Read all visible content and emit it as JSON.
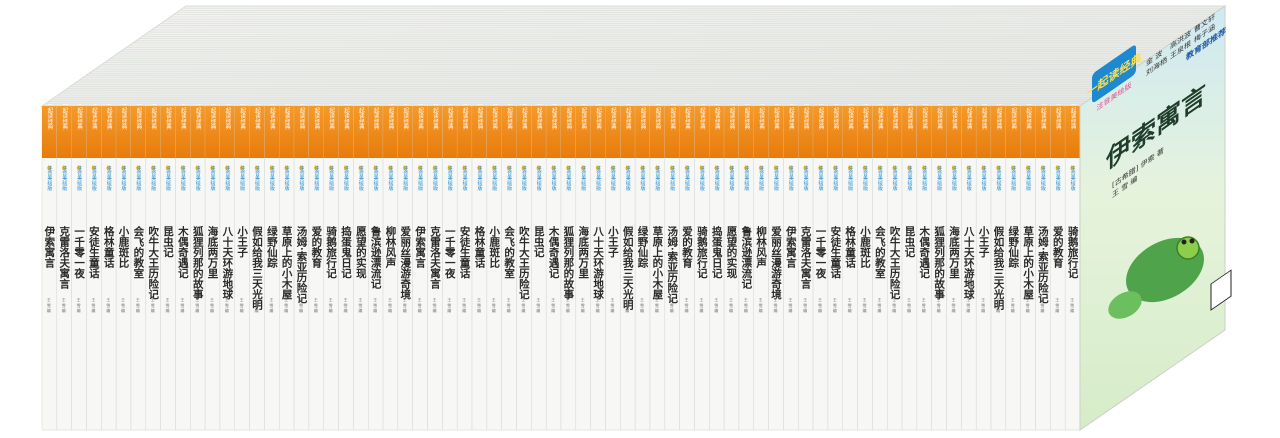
{
  "series_label": "一起读经典",
  "edition_label": "注音美绘版",
  "recommend_label": "教育部推荐",
  "editors": [
    "金 波",
    "高洪波",
    "曹文轩",
    "刘海栖",
    "王泉根",
    "梅子涵"
  ],
  "cover": {
    "title": "伊索寓言",
    "author_line": "[古希腊] 伊索 著",
    "editor_line": "王 雪 编"
  },
  "spine_titles": [
    "伊索寓言",
    "克雷洛夫寓言",
    "一千零一夜",
    "安徒生童话",
    "格林童话",
    "小鹿斑比",
    "会飞的教室",
    "吹牛大王历险记",
    "昆虫记",
    "木偶奇遇记",
    "狐狸列那的故事",
    "海底两万里",
    "八十天环游地球",
    "小王子",
    "假如给我三天光明",
    "绿野仙踪",
    "草原上的小木屋",
    "汤姆·索亚历险记",
    "爱的教育",
    "骑鹅旅行记",
    "捣蛋鬼日记",
    "愿望的实现",
    "鲁滨逊漂流记",
    "柳林风声",
    "爱丽丝漫游奇境",
    "伊索寓言",
    "克雷洛夫寓言",
    "一千零一夜",
    "安徒生童话",
    "格林童话",
    "小鹿斑比",
    "会飞的教室",
    "吹牛大王历险记",
    "昆虫记",
    "木偶奇遇记",
    "狐狸列那的故事",
    "海底两万里",
    "八十天环游地球",
    "小王子",
    "假如给我三天光明",
    "绿野仙踪",
    "草原上的小木屋",
    "汤姆·索亚历险记",
    "爱的教育",
    "骑鹅旅行记",
    "捣蛋鬼日记",
    "愿望的实现",
    "鲁滨逊漂流记",
    "柳林风声",
    "爱丽丝漫游奇境",
    "伊索寓言",
    "克雷洛夫寓言",
    "一千零一夜",
    "安徒生童话",
    "格林童话",
    "小鹿斑比",
    "会飞的教室",
    "吹牛大王历险记",
    "昆虫记",
    "木偶奇遇记",
    "狐狸列那的故事",
    "海底两万里",
    "八十天环游地球",
    "小王子",
    "假如给我三天光明",
    "绿野仙踪",
    "草原上的小木屋",
    "汤姆·索亚历险记",
    "爱的教育",
    "骑鹅旅行记"
  ],
  "colors": {
    "spine_bg": "#f7f8f5",
    "band_orange": "#f08a16",
    "band_orange_dark": "#e06d07",
    "pages_top": "#eef0ee",
    "title_ink": "#2a2a2a",
    "cover_green": "#dff0d8"
  }
}
